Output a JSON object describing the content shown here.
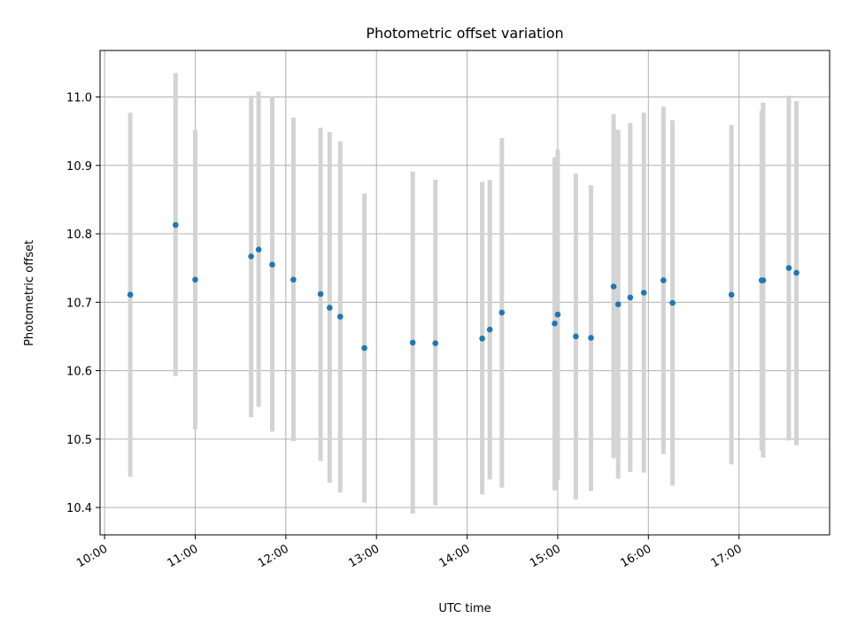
{
  "chart_data": {
    "type": "scatter",
    "title": "Photometric offset variation",
    "xlabel": "UTC time",
    "ylabel": "Photometric offset",
    "xlim": [
      "09:57",
      "18:00"
    ],
    "ylim": [
      10.36,
      11.068
    ],
    "xticks": [
      "10:00",
      "11:00",
      "12:00",
      "13:00",
      "14:00",
      "15:00",
      "16:00",
      "17:00"
    ],
    "yticks": [
      "10.4",
      "10.5",
      "10.6",
      "10.7",
      "10.8",
      "10.9",
      "11.0"
    ],
    "grid": true,
    "colors": {
      "point": "#1f77b4",
      "errorbar": "#d3d3d3",
      "grid": "#b0b0b0"
    },
    "points": [
      {
        "x": "10:17",
        "y": 10.711,
        "yerr_low": 10.445,
        "yerr_high": 10.977
      },
      {
        "x": "10:47",
        "y": 10.813,
        "yerr_low": 10.592,
        "yerr_high": 11.035
      },
      {
        "x": "11:00",
        "y": 10.733,
        "yerr_low": 10.514,
        "yerr_high": 10.952
      },
      {
        "x": "11:37",
        "y": 10.767,
        "yerr_low": 10.532,
        "yerr_high": 11.002
      },
      {
        "x": "11:42",
        "y": 10.777,
        "yerr_low": 10.547,
        "yerr_high": 11.008
      },
      {
        "x": "11:51",
        "y": 10.755,
        "yerr_low": 10.511,
        "yerr_high": 11.0
      },
      {
        "x": "12:05",
        "y": 10.733,
        "yerr_low": 10.497,
        "yerr_high": 10.97
      },
      {
        "x": "12:23",
        "y": 10.712,
        "yerr_low": 10.468,
        "yerr_high": 10.955
      },
      {
        "x": "12:29",
        "y": 10.692,
        "yerr_low": 10.436,
        "yerr_high": 10.949
      },
      {
        "x": "12:36",
        "y": 10.679,
        "yerr_low": 10.422,
        "yerr_high": 10.935
      },
      {
        "x": "12:52",
        "y": 10.633,
        "yerr_low": 10.407,
        "yerr_high": 10.859
      },
      {
        "x": "13:24",
        "y": 10.641,
        "yerr_low": 10.391,
        "yerr_high": 10.891
      },
      {
        "x": "13:39",
        "y": 10.64,
        "yerr_low": 10.403,
        "yerr_high": 10.879
      },
      {
        "x": "14:10",
        "y": 10.647,
        "yerr_low": 10.419,
        "yerr_high": 10.876
      },
      {
        "x": "14:15",
        "y": 10.66,
        "yerr_low": 10.441,
        "yerr_high": 10.879
      },
      {
        "x": "14:23",
        "y": 10.685,
        "yerr_low": 10.429,
        "yerr_high": 10.94
      },
      {
        "x": "14:58",
        "y": 10.669,
        "yerr_low": 10.425,
        "yerr_high": 10.912
      },
      {
        "x": "15:00",
        "y": 10.682,
        "yerr_low": 10.44,
        "yerr_high": 10.923
      },
      {
        "x": "15:12",
        "y": 10.65,
        "yerr_low": 10.412,
        "yerr_high": 10.888
      },
      {
        "x": "15:22",
        "y": 10.648,
        "yerr_low": 10.424,
        "yerr_high": 10.871
      },
      {
        "x": "15:37",
        "y": 10.723,
        "yerr_low": 10.472,
        "yerr_high": 10.975
      },
      {
        "x": "15:40",
        "y": 10.697,
        "yerr_low": 10.442,
        "yerr_high": 10.952
      },
      {
        "x": "15:48",
        "y": 10.707,
        "yerr_low": 10.452,
        "yerr_high": 10.962
      },
      {
        "x": "15:57",
        "y": 10.714,
        "yerr_low": 10.451,
        "yerr_high": 10.977
      },
      {
        "x": "16:10",
        "y": 10.732,
        "yerr_low": 10.478,
        "yerr_high": 10.986
      },
      {
        "x": "16:16",
        "y": 10.699,
        "yerr_low": 10.432,
        "yerr_high": 10.966
      },
      {
        "x": "16:55",
        "y": 10.711,
        "yerr_low": 10.463,
        "yerr_high": 10.959
      },
      {
        "x": "17:15",
        "y": 10.732,
        "yerr_low": 10.483,
        "yerr_high": 10.98
      },
      {
        "x": "17:16",
        "y": 10.732,
        "yerr_low": 10.473,
        "yerr_high": 10.992
      },
      {
        "x": "17:33",
        "y": 10.75,
        "yerr_low": 10.498,
        "yerr_high": 11.002
      },
      {
        "x": "17:38",
        "y": 10.743,
        "yerr_low": 10.491,
        "yerr_high": 10.994
      }
    ]
  }
}
